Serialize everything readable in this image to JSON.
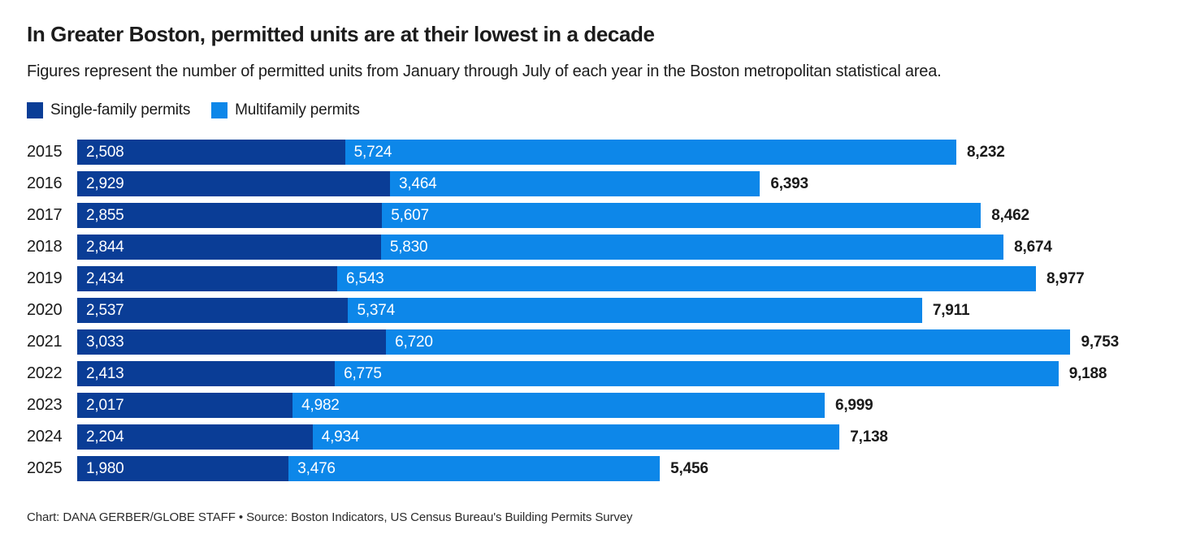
{
  "title": "In Greater Boston, permitted units are at their lowest in a decade",
  "subtitle": "Figures represent the number of permitted units from January through July of each year in the Boston metropolitan statistical area.",
  "legend": [
    {
      "label": "Single-family permits",
      "color": "#0a3d96"
    },
    {
      "label": "Multifamily permits",
      "color": "#0d87e9"
    }
  ],
  "colors": {
    "single_family": "#0a3d96",
    "multifamily": "#0d87e9",
    "text": "#1a1a1a",
    "bar_value_text": "#ffffff",
    "background": "#ffffff"
  },
  "chart_data": {
    "type": "bar",
    "orientation": "horizontal",
    "stacked": true,
    "title": "In Greater Boston, permitted units are at their lowest in a decade",
    "xlabel": "",
    "ylabel": "",
    "grid": false,
    "legend_position": "top-left",
    "xmax": 9753,
    "categories": [
      "2015",
      "2016",
      "2017",
      "2018",
      "2019",
      "2020",
      "2021",
      "2022",
      "2023",
      "2024",
      "2025"
    ],
    "series": [
      {
        "name": "Single-family permits",
        "color": "#0a3d96",
        "values": [
          2508,
          2929,
          2855,
          2844,
          2434,
          2537,
          3033,
          2413,
          2017,
          2204,
          1980
        ]
      },
      {
        "name": "Multifamily permits",
        "color": "#0d87e9",
        "values": [
          5724,
          3464,
          5607,
          5830,
          6543,
          5374,
          6720,
          6775,
          4982,
          4934,
          3476
        ]
      }
    ],
    "totals": [
      8232,
      6393,
      8462,
      8674,
      8977,
      7911,
      9753,
      9188,
      6999,
      7138,
      5456
    ],
    "value_labels": "inside-start",
    "total_labels": "outside-end-bold"
  },
  "footer": "Chart: DANA GERBER/GLOBE STAFF  •  Source: Boston Indicators, US Census Bureau's Building Permits Survey"
}
